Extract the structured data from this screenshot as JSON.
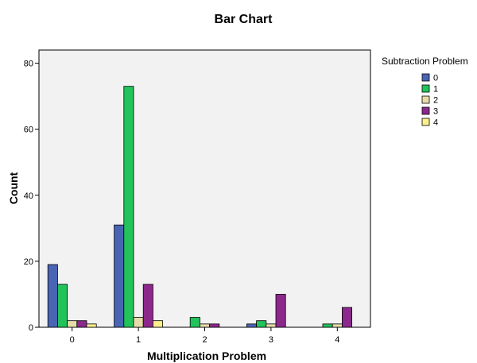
{
  "chart_data": {
    "type": "bar",
    "title": "Bar Chart",
    "xlabel": "Multiplication Problem",
    "ylabel": "Count",
    "categories": [
      "0",
      "1",
      "2",
      "3",
      "4"
    ],
    "yticks": [
      0,
      20,
      40,
      60,
      80
    ],
    "ylim": [
      0,
      84
    ],
    "legend_title": "Subtraction Problem",
    "legend_position": "right",
    "series": [
      {
        "name": "0",
        "color": "#4a64b4",
        "values": [
          19,
          31,
          0,
          1,
          0
        ]
      },
      {
        "name": "1",
        "color": "#22c35a",
        "values": [
          13,
          73,
          3,
          2,
          1
        ]
      },
      {
        "name": "2",
        "color": "#e6dcaa",
        "values": [
          2,
          3,
          1,
          1,
          1
        ]
      },
      {
        "name": "3",
        "color": "#8c288c",
        "values": [
          2,
          13,
          1,
          10,
          6
        ]
      },
      {
        "name": "4",
        "color": "#faf08c",
        "values": [
          1,
          2,
          0,
          0,
          0
        ]
      }
    ],
    "plot_background": "#f2f2f2",
    "grid": false
  }
}
